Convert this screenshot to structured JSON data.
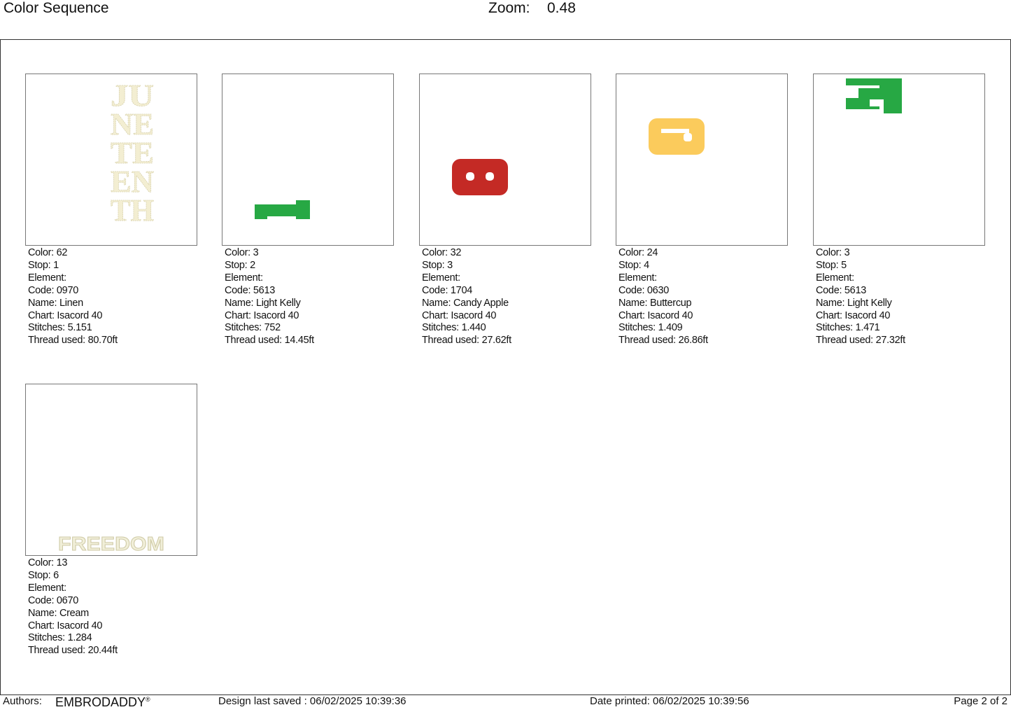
{
  "header": {
    "title": "Color Sequence",
    "zoom_label": "Zoom:",
    "zoom_value": "0.48"
  },
  "labels": {
    "color": "Color: ",
    "stop": "Stop: ",
    "element": "Element:",
    "code": "Code: ",
    "name": "Name: ",
    "chart": "Chart: ",
    "stitches": "Stitches: ",
    "thread": "Thread used: "
  },
  "stops": [
    {
      "color": "62",
      "stop": "1",
      "code": "0970",
      "name": "Linen",
      "chart": "Isacord 40",
      "stitches": "5.151",
      "thread": "80.70ft",
      "swatch": "#f3eed2",
      "thumb_text": "JUNETEENTH"
    },
    {
      "color": "3",
      "stop": "2",
      "code": "5613",
      "name": "Light Kelly",
      "chart": "Isacord 40",
      "stitches": "752",
      "thread": "14.45ft",
      "swatch": "#27a844"
    },
    {
      "color": "32",
      "stop": "3",
      "code": "1704",
      "name": "Candy Apple",
      "chart": "Isacord 40",
      "stitches": "1.440",
      "thread": "27.62ft",
      "swatch": "#c42a25"
    },
    {
      "color": "24",
      "stop": "4",
      "code": "0630",
      "name": "Buttercup",
      "chart": "Isacord 40",
      "stitches": "1.409",
      "thread": "26.86ft",
      "swatch": "#fbcb5c"
    },
    {
      "color": "3",
      "stop": "5",
      "code": "5613",
      "name": "Light Kelly",
      "chart": "Isacord 40",
      "stitches": "1.471",
      "thread": "27.32ft",
      "swatch": "#27a844"
    },
    {
      "color": "13",
      "stop": "6",
      "code": "0670",
      "name": "Cream",
      "chart": "Isacord 40",
      "stitches": "1.284",
      "thread": "20.44ft",
      "swatch": "#f1efd9",
      "thumb_text": "FREEDOM"
    }
  ],
  "footer": {
    "authors_label": "Authors:",
    "authors_value": "EMBRODADDY",
    "registered": "®",
    "saved": "Design last saved : 06/02/2025 10:39:36",
    "printed": "Date printed: 06/02/2025 10:39:56",
    "page": "Page 2 of 2"
  }
}
